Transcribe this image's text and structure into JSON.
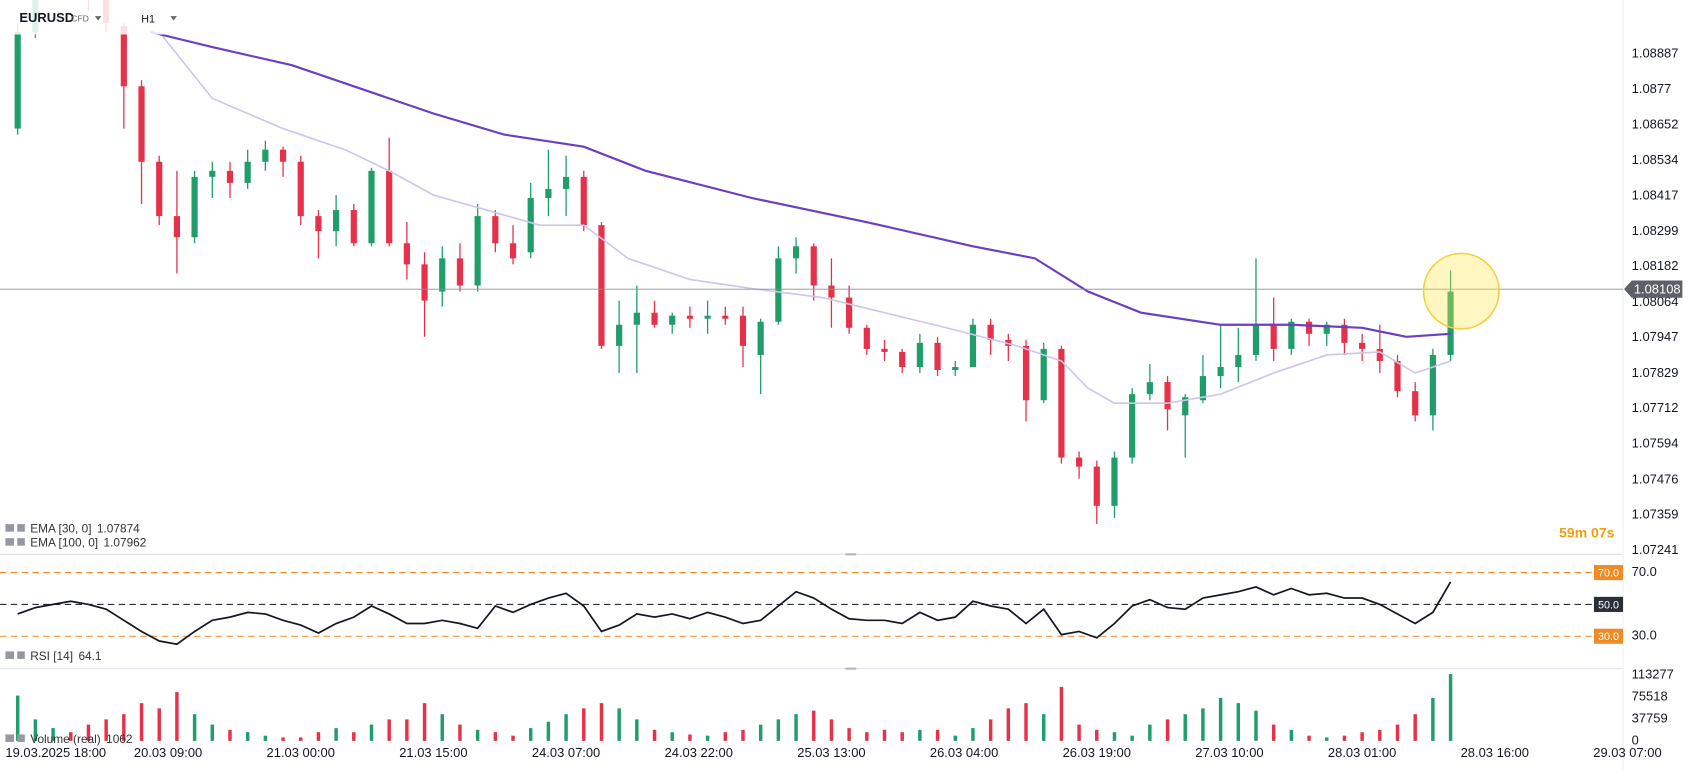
{
  "header": {
    "symbol": "EURUSD",
    "market": "CFD",
    "timeframe": "H1"
  },
  "chart_data": {
    "type": "candlestick",
    "colors": {
      "up": "#1f9e6a",
      "down": "#e5324a"
    },
    "x": [
      1,
      3,
      5,
      7,
      9,
      11,
      13,
      15,
      17,
      19,
      21,
      23,
      25,
      27,
      29,
      31,
      33,
      35,
      37,
      39,
      41,
      43,
      45,
      47,
      49,
      51,
      53,
      55,
      57,
      59,
      61,
      63,
      65,
      67,
      69,
      71,
      73,
      75,
      77,
      79,
      81,
      83,
      85,
      87,
      89,
      91,
      93,
      95,
      97,
      99,
      101,
      103,
      105,
      107,
      109,
      111,
      113,
      115,
      117,
      119,
      121,
      123,
      125,
      127,
      129,
      131,
      133,
      135,
      137,
      139,
      141,
      143,
      145,
      147,
      149,
      151,
      153,
      155,
      157,
      159,
      161,
      163
    ],
    "candles": [
      [
        1.0864,
        1.0899,
        1.0862,
        1.0896
      ],
      [
        1.0896,
        1.0921,
        1.0894,
        1.0914
      ],
      [
        1.0914,
        1.0924,
        1.0908,
        1.0917
      ],
      [
        1.0917,
        1.0924,
        1.0907,
        1.091
      ],
      [
        1.091,
        1.0917,
        1.0903,
        1.0907
      ],
      [
        1.0907,
        1.091,
        1.0896,
        1.0899
      ],
      [
        1.0898,
        1.0899,
        1.0864,
        1.0878
      ],
      [
        1.0878,
        1.088,
        1.0839,
        1.0853
      ],
      [
        1.0853,
        1.0855,
        1.0832,
        1.0835
      ],
      [
        1.0835,
        1.085,
        1.0816,
        1.0828
      ],
      [
        1.0828,
        1.085,
        1.0826,
        1.0848
      ],
      [
        1.0848,
        1.0853,
        1.0841,
        1.085
      ],
      [
        1.085,
        1.0853,
        1.0841,
        1.0846
      ],
      [
        1.0846,
        1.0857,
        1.0844,
        1.0853
      ],
      [
        1.0853,
        1.086,
        1.085,
        1.0857
      ],
      [
        1.0857,
        1.0858,
        1.0848,
        1.0853
      ],
      [
        1.0853,
        1.0855,
        1.0832,
        1.0835
      ],
      [
        1.0835,
        1.0837,
        1.0821,
        1.083
      ],
      [
        1.083,
        1.0842,
        1.0825,
        1.0837
      ],
      [
        1.0837,
        1.0839,
        1.0825,
        1.0826
      ],
      [
        1.0826,
        1.0851,
        1.0825,
        1.085
      ],
      [
        1.085,
        1.0861,
        1.0825,
        1.0826
      ],
      [
        1.0826,
        1.0833,
        1.0814,
        1.0819
      ],
      [
        1.0819,
        1.0823,
        1.0795,
        1.0807
      ],
      [
        1.081,
        1.0825,
        1.0805,
        1.0821
      ],
      [
        1.0821,
        1.0826,
        1.081,
        1.0812
      ],
      [
        1.0812,
        1.0839,
        1.081,
        1.0835
      ],
      [
        1.0835,
        1.0837,
        1.0823,
        1.0826
      ],
      [
        1.0826,
        1.0832,
        1.0819,
        1.0821
      ],
      [
        1.0823,
        1.0846,
        1.0821,
        1.0841
      ],
      [
        1.0841,
        1.0857,
        1.0835,
        1.0844
      ],
      [
        1.0844,
        1.0855,
        1.0835,
        1.0848
      ],
      [
        1.0848,
        1.085,
        1.083,
        1.0832
      ],
      [
        1.0832,
        1.0833,
        1.0791,
        1.0792
      ],
      [
        1.0792,
        1.0807,
        1.0783,
        1.0799
      ],
      [
        1.0799,
        1.0812,
        1.0783,
        1.0803
      ],
      [
        1.0803,
        1.0807,
        1.0798,
        1.0799
      ],
      [
        1.0799,
        1.0803,
        1.0796,
        1.0802
      ],
      [
        1.0802,
        1.0805,
        1.0798,
        1.0801
      ],
      [
        1.0801,
        1.0807,
        1.0796,
        1.0802
      ],
      [
        1.0802,
        1.0805,
        1.0799,
        1.0801
      ],
      [
        1.0802,
        1.0805,
        1.0785,
        1.0792
      ],
      [
        1.0789,
        1.0801,
        1.0776,
        1.08
      ],
      [
        1.08,
        1.0825,
        1.0799,
        1.0821
      ],
      [
        1.0821,
        1.0828,
        1.0816,
        1.0825
      ],
      [
        1.0825,
        1.0826,
        1.0807,
        1.0812
      ],
      [
        1.0812,
        1.0821,
        1.0798,
        1.0808
      ],
      [
        1.0808,
        1.0812,
        1.0796,
        1.0798
      ],
      [
        1.0798,
        1.0799,
        1.0789,
        1.0791
      ],
      [
        1.0791,
        1.0794,
        1.0787,
        1.079
      ],
      [
        1.079,
        1.0791,
        1.0783,
        1.0785
      ],
      [
        1.0785,
        1.0796,
        1.0783,
        1.0793
      ],
      [
        1.0793,
        1.0795,
        1.0782,
        1.0784
      ],
      [
        1.0784,
        1.0787,
        1.0782,
        1.0785
      ],
      [
        1.0785,
        1.0801,
        1.0785,
        1.0799
      ],
      [
        1.0799,
        1.0801,
        1.0789,
        1.0794
      ],
      [
        1.0794,
        1.0796,
        1.0787,
        1.0792
      ],
      [
        1.0792,
        1.0794,
        1.0767,
        1.0774
      ],
      [
        1.0774,
        1.0793,
        1.0773,
        1.0791
      ],
      [
        1.0791,
        1.0792,
        1.0753,
        1.0755
      ],
      [
        1.0755,
        1.0757,
        1.0748,
        1.0752
      ],
      [
        1.0752,
        1.0754,
        1.0733,
        1.0739
      ],
      [
        1.0739,
        1.0757,
        1.0735,
        1.0755
      ],
      [
        1.0755,
        1.0778,
        1.0753,
        1.0776
      ],
      [
        1.0776,
        1.0786,
        1.0774,
        1.078
      ],
      [
        1.078,
        1.0782,
        1.0764,
        1.0771
      ],
      [
        1.0769,
        1.0776,
        1.0755,
        1.0775
      ],
      [
        1.0774,
        1.0789,
        1.0773,
        1.0782
      ],
      [
        1.0782,
        1.0799,
        1.0778,
        1.0785
      ],
      [
        1.0785,
        1.0798,
        1.078,
        1.0789
      ],
      [
        1.0789,
        1.0821,
        1.0787,
        1.0799
      ],
      [
        1.0799,
        1.0808,
        1.0787,
        1.0791
      ],
      [
        1.0791,
        1.0801,
        1.0789,
        1.08
      ],
      [
        1.08,
        1.0801,
        1.0792,
        1.0796
      ],
      [
        1.0796,
        1.08,
        1.0792,
        1.0799
      ],
      [
        1.0799,
        1.0801,
        1.0789,
        1.0793
      ],
      [
        1.0793,
        1.0796,
        1.0787,
        1.0791
      ],
      [
        1.0791,
        1.0799,
        1.0783,
        1.0787
      ],
      [
        1.0787,
        1.0789,
        1.0775,
        1.0777
      ],
      [
        1.0777,
        1.078,
        1.0767,
        1.0769
      ],
      [
        1.0769,
        1.0791,
        1.0764,
        1.0789
      ],
      [
        1.0789,
        1.0817,
        1.0787,
        1.081
      ]
    ],
    "ylim": [
      1.07233,
      1.09066
    ],
    "yticks": [
      1.08887,
      1.0877,
      1.08652,
      1.08534,
      1.08417,
      1.08299,
      1.08182,
      1.08064,
      1.07947,
      1.07829,
      1.07712,
      1.07594,
      1.07476,
      1.07359,
      1.07241
    ],
    "xlim": [
      -1,
      182.5
    ],
    "xticks": [
      {
        "value": 3,
        "label": "19.03.2025 18:00"
      },
      {
        "value": 18,
        "label": "20.03 09:00"
      },
      {
        "value": 33,
        "label": "21.03 00:00"
      },
      {
        "value": 48,
        "label": "21.03 15:00"
      },
      {
        "value": 63,
        "label": "24.03 07:00"
      },
      {
        "value": 78,
        "label": "24.03 22:00"
      },
      {
        "value": 93,
        "label": "25.03 13:00"
      },
      {
        "value": 108,
        "label": "26.03 04:00"
      },
      {
        "value": 123,
        "label": "26.03 19:00"
      },
      {
        "value": 138,
        "label": "27.03 10:00"
      },
      {
        "value": 153,
        "label": "28.03 01:00"
      },
      {
        "value": 168,
        "label": "28.03 16:00"
      },
      {
        "value": 183,
        "label": "29.03 07:00"
      }
    ],
    "overlays": [
      {
        "name": "EMA [30, 0]",
        "value": 1.07874,
        "color": "#cfc5e8",
        "x": [
          17,
          23,
          31,
          38,
          43,
          48,
          54,
          60,
          65,
          70,
          77,
          84,
          92,
          99,
          106,
          114,
          119,
          122,
          125,
          131,
          137,
          143,
          149,
          155,
          159,
          163
        ],
        "values": [
          1.0896,
          1.0874,
          1.0864,
          1.0857,
          1.085,
          1.0842,
          1.0837,
          1.0832,
          1.0832,
          1.0821,
          1.0814,
          1.0811,
          1.0808,
          1.0803,
          1.0798,
          1.0792,
          1.0787,
          1.0778,
          1.0773,
          1.0773,
          1.0776,
          1.0783,
          1.0789,
          1.079,
          1.0783,
          1.0787
        ]
      },
      {
        "name": "EMA [100, 0]",
        "value": 1.07962,
        "color": "#6a3fc1",
        "x": [
          16,
          23,
          32,
          39,
          48,
          56,
          65,
          72,
          84,
          97,
          109,
          116,
          122,
          128,
          137,
          145,
          153,
          158,
          163
        ],
        "values": [
          1.0896,
          1.0891,
          1.0885,
          1.0878,
          1.0869,
          1.0862,
          1.0858,
          1.085,
          1.0841,
          1.0833,
          1.0825,
          1.0821,
          1.081,
          1.0803,
          1.0799,
          1.0799,
          1.0798,
          1.0795,
          1.0796
        ]
      }
    ],
    "current_price": 1.08108,
    "countdown": "59m 07s",
    "rsi": {
      "name": "RSI [14]",
      "value": 64.1,
      "color": "#131722",
      "values": [
        44,
        48,
        50,
        52,
        50,
        47,
        40,
        33,
        27,
        25,
        33,
        40,
        42,
        45,
        44,
        40,
        37,
        32,
        38,
        42,
        49,
        44,
        38,
        38,
        40,
        38,
        35,
        49,
        45,
        50,
        54,
        57,
        49,
        33,
        37,
        44,
        42,
        44,
        41,
        45,
        42,
        38,
        40,
        49,
        58,
        54,
        47,
        41,
        40,
        40,
        38,
        45,
        40,
        42,
        52,
        49,
        47,
        38,
        47,
        31,
        33,
        29,
        38,
        49,
        53,
        48,
        47,
        54,
        56,
        58,
        61,
        56,
        60,
        56,
        57,
        54,
        54,
        50,
        44,
        38,
        45,
        64.1
      ],
      "ylim": [
        11,
        80.8
      ],
      "levels": [
        {
          "value": 70,
          "label": "70.0"
        },
        {
          "value": 50,
          "label": "50.0"
        },
        {
          "value": 30,
          "label": "30.0"
        }
      ],
      "yticks": [
        {
          "value": 70,
          "label": "70.0"
        },
        {
          "value": 30,
          "label": "30.0"
        }
      ]
    },
    "volume": {
      "name": "Volume (real)",
      "value": 1062,
      "values": [
        78000,
        37000,
        22000,
        15000,
        28000,
        37000,
        46000,
        65000,
        56000,
        84000,
        46000,
        28000,
        19000,
        15000,
        9000,
        6000,
        6000,
        15000,
        22000,
        15000,
        28000,
        37000,
        37000,
        65000,
        46000,
        28000,
        19000,
        15000,
        9000,
        22000,
        33000,
        46000,
        56000,
        65000,
        56000,
        37000,
        19000,
        15000,
        11000,
        9000,
        15000,
        19000,
        28000,
        37000,
        46000,
        52000,
        37000,
        22000,
        15000,
        19000,
        15000,
        19000,
        19000,
        9000,
        22000,
        37000,
        56000,
        65000,
        46000,
        93000,
        28000,
        19000,
        15000,
        9000,
        28000,
        37000,
        46000,
        56000,
        74000,
        65000,
        52000,
        28000,
        19000,
        9000,
        6000,
        9000,
        15000,
        19000,
        28000,
        46000,
        74000,
        115000
      ],
      "ylim": [
        0,
        120700
      ],
      "yticks": [
        0,
        37759,
        75518,
        113277
      ]
    }
  }
}
